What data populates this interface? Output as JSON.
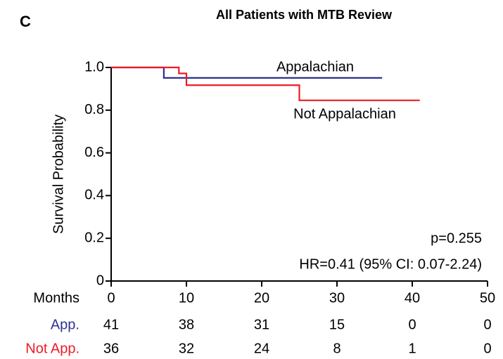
{
  "chart_data": {
    "type": "step",
    "panel_label": "C",
    "title": "All Patients with MTB Review",
    "y_label": "Survival Probability",
    "xlim": [
      0,
      50
    ],
    "xticks": [
      0,
      10,
      20,
      30,
      40,
      50
    ],
    "ylim": [
      0,
      1
    ],
    "yticks": [
      0,
      0.2,
      0.4,
      0.6,
      0.8,
      {
        "value": 1,
        "label": "1.0"
      }
    ],
    "series": [
      {
        "name": "Appalachian",
        "color": "#2e3192",
        "x": [
          0,
          7,
          36
        ],
        "values": [
          1,
          0.951,
          0.951
        ]
      },
      {
        "name": "Not Appalachian",
        "color": "#ed1c24",
        "x": [
          0,
          9,
          10,
          25,
          41
        ],
        "values": [
          1,
          0.972,
          0.917,
          0.846,
          0.846
        ]
      }
    ],
    "annotations": [
      "p=0.255",
      "HR=0.41 (95% CI: 0.07-2.24)"
    ],
    "risk_table": {
      "label": "Months",
      "rows": [
        {
          "name": "App.",
          "color": "#2e3192",
          "values": [
            41,
            38,
            31,
            15,
            0,
            0
          ]
        },
        {
          "name": "Not App.",
          "color": "#ed1c24",
          "values": [
            36,
            32,
            24,
            8,
            1,
            0
          ]
        }
      ]
    }
  }
}
